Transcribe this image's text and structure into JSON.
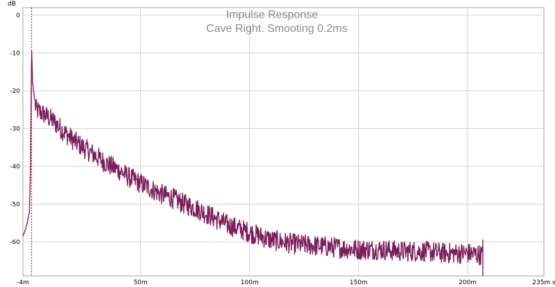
{
  "chart_data": {
    "type": "line",
    "title": "Impulse Response",
    "subtitle": "Cave Right.  Smooting 0.2ms",
    "ylabel": "dB",
    "xunit": "s",
    "xlim": [
      -0.004,
      0.235
    ],
    "ylim": [
      -69,
      2
    ],
    "grid": true,
    "y_ticks": [
      0,
      -10,
      -20,
      -30,
      -40,
      -50,
      -60
    ],
    "y_tick_labels": [
      "0",
      "-10",
      "-20",
      "-30",
      "-40",
      "-50",
      "-60"
    ],
    "x_ticks": [
      -0.004,
      0.05,
      0.1,
      0.15,
      0.2,
      0.235
    ],
    "x_tick_labels": [
      "-4m",
      "50m",
      "100m",
      "150m",
      "200m",
      "235m"
    ],
    "marker": {
      "x": 0,
      "style": "dashed",
      "color": "#cc0000"
    },
    "series": [
      {
        "color": "#7b1e5a",
        "points": [
          [
            -0.004,
            -58.5
          ],
          [
            -0.003,
            -57.0
          ],
          [
            -0.002,
            -55.0
          ],
          [
            -0.001,
            -52.0
          ],
          [
            -0.0005,
            -40.0
          ],
          [
            0.0,
            -9.5
          ],
          [
            0.0005,
            -18.0
          ],
          [
            0.001,
            -20.5
          ],
          [
            0.002,
            -25.0
          ],
          [
            0.005,
            -26.0
          ],
          [
            0.01,
            -28.0
          ],
          [
            0.015,
            -31.0
          ],
          [
            0.02,
            -33.5
          ],
          [
            0.025,
            -35.5
          ],
          [
            0.03,
            -37.5
          ],
          [
            0.035,
            -39.5
          ],
          [
            0.04,
            -41.0
          ],
          [
            0.045,
            -43.0
          ],
          [
            0.05,
            -44.5
          ],
          [
            0.055,
            -46.0
          ],
          [
            0.06,
            -47.5
          ],
          [
            0.065,
            -48.5
          ],
          [
            0.07,
            -50.0
          ],
          [
            0.075,
            -51.0
          ],
          [
            0.08,
            -52.5
          ],
          [
            0.085,
            -54.0
          ],
          [
            0.09,
            -55.5
          ],
          [
            0.095,
            -56.5
          ],
          [
            0.1,
            -57.5
          ],
          [
            0.105,
            -58.5
          ],
          [
            0.11,
            -59.5
          ],
          [
            0.115,
            -60.0
          ],
          [
            0.12,
            -60.5
          ],
          [
            0.13,
            -61.0
          ],
          [
            0.14,
            -61.5
          ],
          [
            0.15,
            -62.0
          ],
          [
            0.16,
            -62.0
          ],
          [
            0.17,
            -62.5
          ],
          [
            0.18,
            -62.5
          ],
          [
            0.19,
            -63.0
          ],
          [
            0.2,
            -63.0
          ],
          [
            0.207,
            -63.5
          ]
        ]
      }
    ]
  }
}
